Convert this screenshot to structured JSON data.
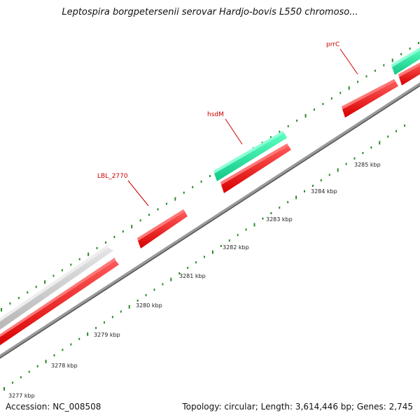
{
  "title": "Leptospira borgpetersenii serovar Hardjo-bovis L550 chromoso...",
  "footer": {
    "accession": "Accession: NC_008508",
    "topology": "Topology: circular; Length: 3,614,446 bp; Genes: 2,745"
  },
  "colors": {
    "backbone": "#8a8a8a",
    "gene_red": "#ff0000",
    "gene_green": "#22e8a0",
    "gene_gray": "#cccccc",
    "tick": "#2a8a2a",
    "label": "#cc0000"
  },
  "scale_labels": [
    "3277 kbp",
    "3278 kbp",
    "3279 kbp",
    "3280 kbp",
    "3281 kbp",
    "3282 kbp",
    "3283 kbp",
    "3284 kbp",
    "3285 kbp"
  ],
  "gene_labels": [
    "LBL_2770",
    "hsdM",
    "prrC"
  ]
}
